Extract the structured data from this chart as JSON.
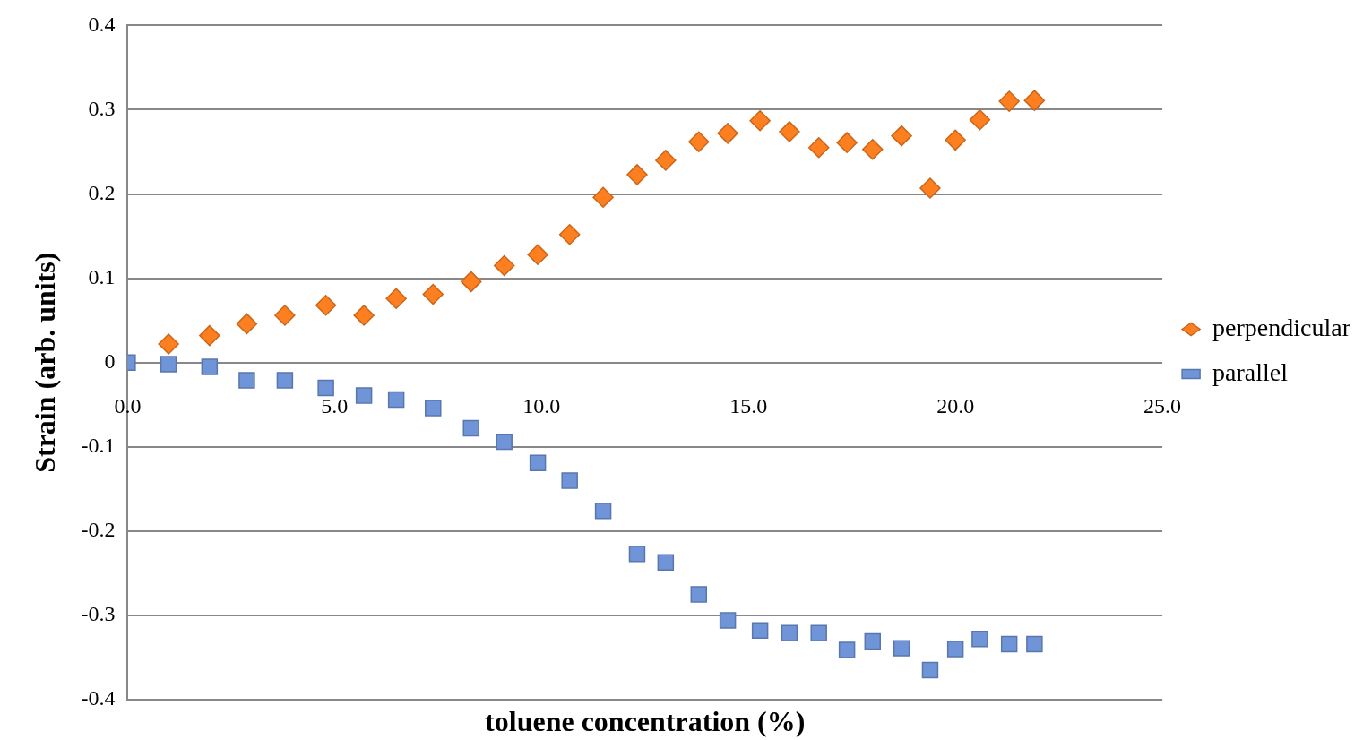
{
  "chart_data": {
    "type": "scatter",
    "xlabel": "toluene concentration (%)",
    "ylabel": "Strain (arb. units)",
    "xlim": [
      0,
      25
    ],
    "xticks": [
      {
        "value": 0,
        "label": "0.0"
      },
      {
        "value": 5,
        "label": "5.0"
      },
      {
        "value": 10,
        "label": "10.0"
      },
      {
        "value": 15,
        "label": "15.0"
      },
      {
        "value": 20,
        "label": "20.0"
      },
      {
        "value": 25,
        "label": "25.0"
      }
    ],
    "ylim": [
      -0.4,
      0.4
    ],
    "yticks": [
      -0.4,
      -0.3,
      -0.2,
      -0.1,
      0,
      0.1,
      0.2,
      0.3,
      0.4
    ],
    "grid": "y",
    "legend": "right",
    "series": [
      {
        "name": "perpendicular",
        "color": "#fd7f1f",
        "marker": "diamond",
        "x": [
          0.99,
          1.98,
          2.88,
          3.8,
          4.79,
          5.71,
          6.49,
          7.38,
          8.3,
          9.1,
          9.91,
          10.68,
          11.49,
          12.31,
          13.0,
          13.8,
          14.5,
          15.28,
          15.99,
          16.7,
          17.38,
          18.0,
          18.7,
          19.39,
          20.0,
          20.59,
          21.3,
          21.91
        ],
        "values": [
          0.022,
          0.032,
          0.046,
          0.056,
          0.068,
          0.056,
          0.076,
          0.081,
          0.096,
          0.115,
          0.128,
          0.152,
          0.196,
          0.223,
          0.24,
          0.262,
          0.272,
          0.287,
          0.274,
          0.255,
          0.261,
          0.253,
          0.269,
          0.207,
          0.264,
          0.288,
          0.31,
          0.311
        ]
      },
      {
        "name": "parallel",
        "color": "#6f95d8",
        "marker": "square",
        "x": [
          0,
          0.99,
          1.98,
          2.88,
          3.8,
          4.79,
          5.71,
          6.49,
          7.38,
          8.3,
          9.1,
          9.91,
          10.68,
          11.49,
          12.31,
          13.0,
          13.8,
          14.5,
          15.28,
          15.99,
          16.7,
          17.38,
          18.0,
          18.7,
          19.39,
          20.0,
          20.59,
          21.3,
          21.91
        ],
        "values": [
          0,
          -0.002,
          -0.005,
          -0.021,
          -0.021,
          -0.03,
          -0.039,
          -0.044,
          -0.054,
          -0.078,
          -0.094,
          -0.119,
          -0.14,
          -0.176,
          -0.227,
          -0.237,
          -0.275,
          -0.306,
          -0.318,
          -0.321,
          -0.321,
          -0.341,
          -0.331,
          -0.339,
          -0.365,
          -0.34,
          -0.328,
          -0.334,
          -0.334
        ]
      }
    ]
  }
}
